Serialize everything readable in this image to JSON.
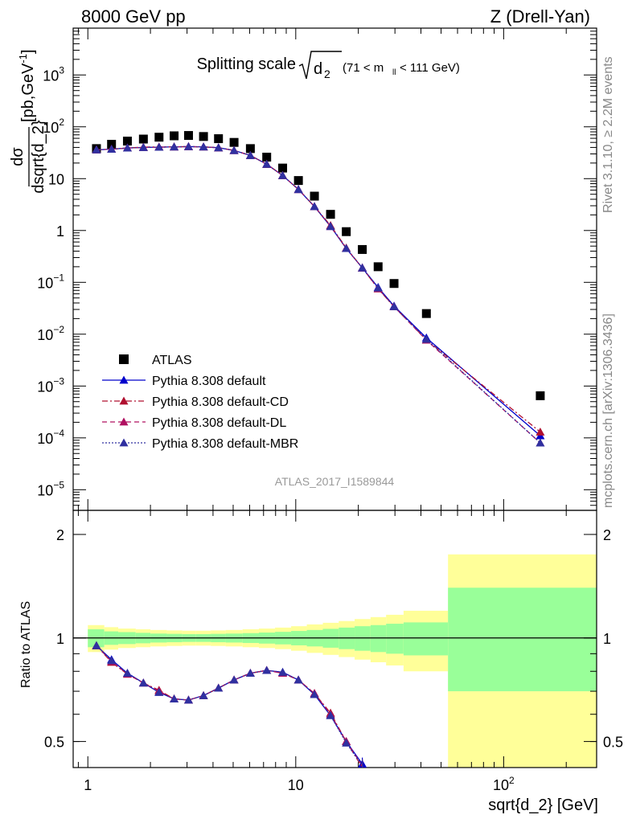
{
  "header": {
    "left": "8000 GeV pp",
    "right": "Z (Drell-Yan)"
  },
  "plot_title": {
    "main": "Splitting scale",
    "var": "d",
    "var_sub": "2",
    "range": "(71 < m",
    "range_sub": "ll",
    "range_end": " < 111 GeV)"
  },
  "side_labels": {
    "rivet": "Rivet 3.1.10, ≥ 2.2M events",
    "mcplots": "mcplots.cern.ch [arXiv:1306.3436]"
  },
  "watermark": "ATLAS_2017_I1589844",
  "y_label_top": {
    "numerator": "dσ",
    "denominator": "dsqrt{d_2}",
    "units": "[pb,GeV",
    "units_sup": "-1",
    "units_end": "]"
  },
  "y_label_bottom": "Ratio to ATLAS",
  "x_label": "sqrt{d_2} [GeV]",
  "colors": {
    "atlas": "#000000",
    "default": "#0000cc",
    "cd": "#b01030",
    "dl": "#b01060",
    "mbr": "#3030a0",
    "band_inner": "#99ff99",
    "band_outer": "#ffff99"
  },
  "chart_data": [
    {
      "type": "scatter",
      "panel": "main",
      "xscale": "log",
      "yscale": "log",
      "xlim": [
        0.85,
        280
      ],
      "ylim": [
        4e-06,
        8000
      ],
      "x_ticks": [
        {
          "value": 1,
          "label": "1"
        },
        {
          "value": 10,
          "label": "10"
        },
        {
          "value": 100,
          "label": "10",
          "sup": "2"
        }
      ],
      "y_ticks": [
        {
          "value": 1e-05,
          "base": "10",
          "sup": "−5"
        },
        {
          "value": 0.0001,
          "base": "10",
          "sup": "−4"
        },
        {
          "value": 0.001,
          "base": "10",
          "sup": "−3"
        },
        {
          "value": 0.01,
          "base": "10",
          "sup": "−2"
        },
        {
          "value": 0.1,
          "base": "10",
          "sup": "−1"
        },
        {
          "value": 1,
          "base": "1",
          "sup": ""
        },
        {
          "value": 10,
          "base": "10",
          "sup": ""
        },
        {
          "value": 100,
          "base": "10",
          "sup": "2"
        },
        {
          "value": 1000,
          "base": "10",
          "sup": "3"
        }
      ],
      "legend_position": "bottom-left",
      "series": [
        {
          "name": "ATLAS",
          "style": "square",
          "x": [
            1.1,
            1.3,
            1.55,
            1.85,
            2.2,
            2.6,
            3.05,
            3.6,
            4.25,
            5.05,
            6.05,
            7.25,
            8.65,
            10.3,
            12.3,
            14.7,
            17.5,
            20.9,
            24.9,
            29.7,
            42.5,
            150
          ],
          "y": [
            38,
            46,
            53,
            58,
            63,
            67,
            68,
            65,
            59,
            50,
            38,
            26,
            16,
            9.2,
            4.6,
            2.05,
            0.95,
            0.43,
            0.2,
            0.095,
            0.025,
            0.00065
          ]
        },
        {
          "name": "Pythia 8.308 default",
          "style": "solid",
          "x": [
            1.1,
            1.3,
            1.55,
            1.85,
            2.2,
            2.6,
            3.05,
            3.6,
            4.25,
            5.05,
            6.05,
            7.25,
            8.65,
            10.3,
            12.3,
            14.7,
            17.5,
            20.9,
            24.9,
            29.7,
            42.5,
            150
          ],
          "y": [
            36,
            37,
            39,
            40,
            40.5,
            41,
            41.5,
            41,
            39.5,
            35,
            28,
            19,
            11.5,
            6.2,
            2.9,
            1.2,
            0.45,
            0.19,
            0.08,
            0.035,
            0.0085,
            0.00011
          ]
        },
        {
          "name": "Pythia 8.308 default-CD",
          "style": "dash-dot",
          "x": [
            1.1,
            1.3,
            1.55,
            1.85,
            2.2,
            2.6,
            3.05,
            3.6,
            4.25,
            5.05,
            6.05,
            7.25,
            8.65,
            10.3,
            12.3,
            14.7,
            17.5,
            20.9,
            24.9,
            29.7,
            42.5,
            150
          ],
          "y": [
            36,
            37,
            39,
            40.5,
            41,
            41,
            41.5,
            41,
            39.5,
            35,
            28,
            19,
            11.5,
            6.2,
            2.9,
            1.25,
            0.46,
            0.19,
            0.075,
            0.034,
            0.0078,
            0.00013
          ]
        },
        {
          "name": "Pythia 8.308 default-DL",
          "style": "dashed",
          "x": [
            1.1,
            1.3,
            1.55,
            1.85,
            2.2,
            2.6,
            3.05,
            3.6,
            4.25,
            5.05,
            6.05,
            7.25,
            8.65,
            10.3,
            12.3,
            14.7,
            17.5,
            20.9,
            24.9,
            29.7,
            42.5,
            150
          ],
          "y": [
            36,
            37,
            39,
            40,
            40.5,
            41,
            41.5,
            41,
            39.5,
            35,
            28,
            19,
            11.5,
            6.2,
            2.9,
            1.2,
            0.45,
            0.19,
            0.076,
            0.034,
            0.0077,
            8e-05
          ]
        },
        {
          "name": "Pythia 8.308 default-MBR",
          "style": "dotted",
          "x": [
            1.1,
            1.3,
            1.55,
            1.85,
            2.2,
            2.6,
            3.05,
            3.6,
            4.25,
            5.05,
            6.05,
            7.25,
            8.65,
            10.3,
            12.3,
            14.7,
            17.5,
            20.9,
            24.9,
            29.7,
            42.5,
            150
          ],
          "y": [
            36,
            37,
            39,
            40,
            40.5,
            41,
            41.5,
            41,
            39.5,
            35,
            28,
            19,
            11.5,
            6.2,
            2.9,
            1.2,
            0.45,
            0.19,
            0.078,
            0.034,
            0.008,
            8e-05
          ]
        }
      ]
    },
    {
      "type": "line",
      "panel": "ratio",
      "xscale": "log",
      "yscale": "log",
      "xlim": [
        0.85,
        280
      ],
      "ylim": [
        0.42,
        2.35
      ],
      "y_ticks": [
        {
          "value": 0.5,
          "label": "0.5"
        },
        {
          "value": 1,
          "label": "1"
        },
        {
          "value": 2,
          "label": "2"
        }
      ],
      "reference_line": 1,
      "bands": {
        "edges": [
          1,
          1.2,
          1.4,
          1.7,
          2.0,
          2.4,
          2.85,
          3.3,
          3.9,
          4.6,
          5.55,
          6.65,
          7.95,
          9.5,
          11.3,
          13.5,
          16.1,
          19.2,
          22.9,
          27.2,
          33,
          54,
          280
        ],
        "inner_low": [
          0.94,
          0.955,
          0.96,
          0.965,
          0.97,
          0.972,
          0.974,
          0.974,
          0.972,
          0.97,
          0.967,
          0.963,
          0.958,
          0.952,
          0.945,
          0.937,
          0.928,
          0.918,
          0.91,
          0.9,
          0.89,
          0.7
        ],
        "inner_high": [
          1.06,
          1.045,
          1.04,
          1.035,
          1.03,
          1.028,
          1.026,
          1.026,
          1.028,
          1.03,
          1.033,
          1.037,
          1.042,
          1.048,
          1.055,
          1.063,
          1.072,
          1.082,
          1.09,
          1.1,
          1.11,
          1.4
        ],
        "outer_low": [
          0.91,
          0.925,
          0.935,
          0.94,
          0.945,
          0.948,
          0.95,
          0.95,
          0.948,
          0.945,
          0.94,
          0.935,
          0.928,
          0.918,
          0.905,
          0.893,
          0.88,
          0.865,
          0.85,
          0.832,
          0.8,
          0.38
        ],
        "outer_high": [
          1.09,
          1.075,
          1.065,
          1.06,
          1.055,
          1.052,
          1.05,
          1.05,
          1.052,
          1.055,
          1.06,
          1.065,
          1.072,
          1.082,
          1.095,
          1.107,
          1.12,
          1.135,
          1.15,
          1.168,
          1.2,
          1.75
        ]
      },
      "series": [
        {
          "name": "Pythia 8.308 default",
          "style": "solid",
          "x": [
            1.1,
            1.3,
            1.55,
            1.85,
            2.2,
            2.6,
            3.05,
            3.6,
            4.25,
            5.05,
            6.05,
            7.25,
            8.65,
            10.3,
            12.3,
            14.7,
            17.5,
            20.9,
            24.9
          ],
          "y": [
            0.95,
            0.865,
            0.79,
            0.74,
            0.695,
            0.665,
            0.66,
            0.68,
            0.715,
            0.755,
            0.79,
            0.805,
            0.795,
            0.755,
            0.685,
            0.595,
            0.5,
            0.43,
            0.39
          ]
        },
        {
          "name": "Pythia 8.308 default-CD",
          "style": "dash-dot",
          "x": [
            1.1,
            1.3,
            1.55,
            1.85,
            2.2,
            2.6,
            3.05,
            3.6,
            4.25,
            5.05,
            6.05,
            7.25,
            8.65,
            10.3,
            12.3,
            14.7,
            17.5,
            20.9,
            24.9
          ],
          "y": [
            0.95,
            0.85,
            0.785,
            0.74,
            0.705,
            0.665,
            0.66,
            0.68,
            0.715,
            0.755,
            0.79,
            0.805,
            0.79,
            0.755,
            0.69,
            0.605,
            0.5,
            0.42,
            0.38
          ]
        },
        {
          "name": "Pythia 8.308 default-DL",
          "style": "dashed",
          "x": [
            1.1,
            1.3,
            1.55,
            1.85,
            2.2,
            2.6,
            3.05,
            3.6,
            4.25,
            5.05,
            6.05,
            7.25,
            8.65,
            10.3,
            12.3,
            14.7,
            17.5,
            20.9,
            24.9
          ],
          "y": [
            0.95,
            0.855,
            0.785,
            0.74,
            0.7,
            0.665,
            0.66,
            0.68,
            0.715,
            0.755,
            0.79,
            0.805,
            0.79,
            0.755,
            0.69,
            0.6,
            0.5,
            0.425,
            0.38
          ]
        },
        {
          "name": "Pythia 8.308 default-MBR",
          "style": "dotted",
          "x": [
            1.1,
            1.3,
            1.55,
            1.85,
            2.2,
            2.6,
            3.05,
            3.6,
            4.25,
            5.05,
            6.05,
            7.25,
            8.65,
            10.3,
            12.3,
            14.7,
            17.5,
            20.9,
            24.9
          ],
          "y": [
            0.95,
            0.86,
            0.79,
            0.74,
            0.695,
            0.665,
            0.66,
            0.68,
            0.715,
            0.755,
            0.79,
            0.805,
            0.795,
            0.755,
            0.685,
            0.595,
            0.495,
            0.425,
            0.385
          ]
        }
      ]
    }
  ]
}
